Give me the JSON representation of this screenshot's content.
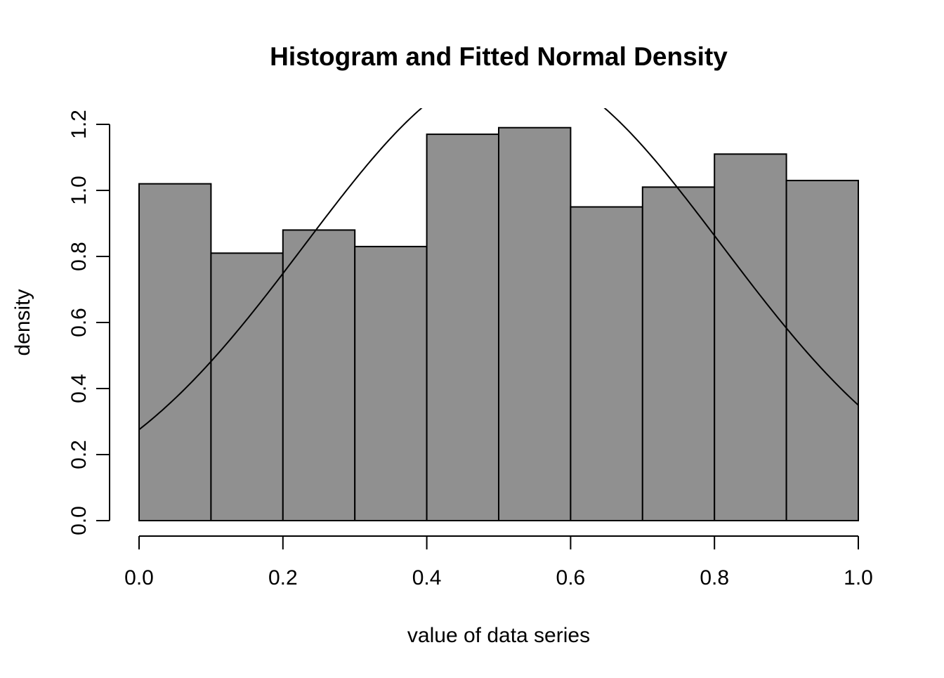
{
  "chart_data": {
    "type": "bar",
    "subtype": "histogram-with-density-curve",
    "title": "Histogram and Fitted Normal Density",
    "xlabel": "value of data series",
    "ylabel": "density",
    "bin_start": 0.0,
    "bin_width": 0.1,
    "bin_edges": [
      0.0,
      0.1,
      0.2,
      0.3,
      0.4,
      0.5,
      0.6,
      0.7,
      0.8,
      0.9,
      1.0
    ],
    "densities": [
      1.02,
      0.81,
      0.88,
      0.83,
      1.17,
      1.19,
      0.95,
      1.01,
      1.11,
      1.03
    ],
    "x_ticks": [
      0.0,
      0.2,
      0.4,
      0.6,
      0.8,
      1.0
    ],
    "y_ticks": [
      0.0,
      0.2,
      0.4,
      0.6,
      0.8,
      1.0,
      1.2
    ],
    "xlim": [
      0.0,
      1.0
    ],
    "ylim": [
      0.0,
      1.2
    ],
    "fitted_normal": {
      "mean": 0.52,
      "sd": 0.29
    },
    "legend": "none",
    "grid": false,
    "colors": {
      "bar_fill": "#909090",
      "bar_stroke": "#000000",
      "curve": "#000000",
      "axis": "#000000",
      "background": "#ffffff"
    }
  }
}
